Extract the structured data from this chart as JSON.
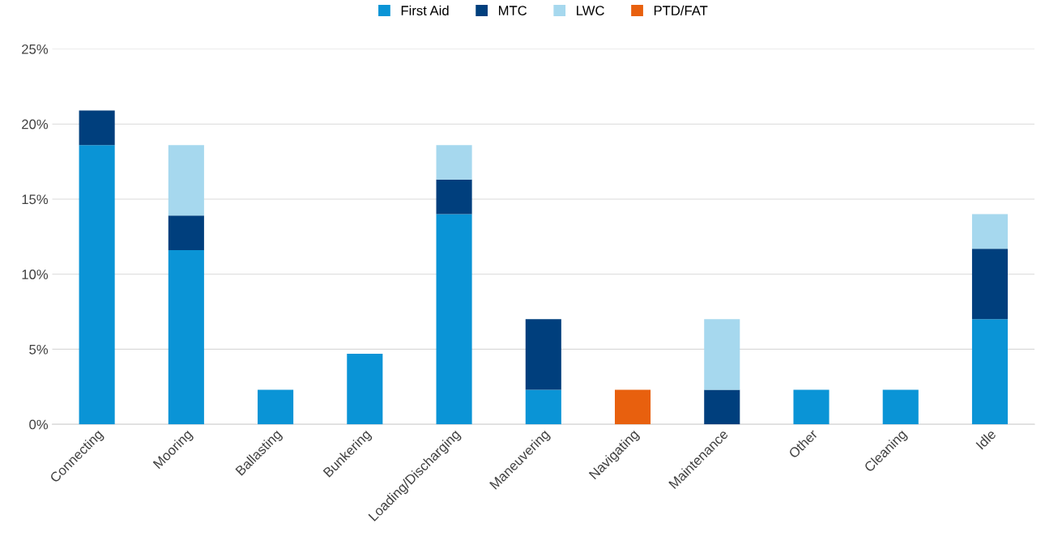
{
  "chart_data": {
    "type": "bar",
    "stacked": true,
    "categories": [
      "Connecting",
      "Mooring",
      "Ballasting",
      "Bunkering",
      "Loading/Discharging",
      "Maneuvering",
      "Navigating",
      "Maintenance",
      "Other",
      "Cleaning",
      "Idle"
    ],
    "series": [
      {
        "name": "First Aid",
        "color": "#0a94d6",
        "values": [
          18.6,
          11.6,
          2.3,
          4.7,
          14.0,
          2.3,
          null,
          null,
          2.3,
          2.3,
          7.0
        ]
      },
      {
        "name": "MTC",
        "color": "#003f7d",
        "values": [
          2.3,
          2.3,
          null,
          null,
          2.3,
          4.7,
          null,
          2.3,
          null,
          null,
          4.7
        ]
      },
      {
        "name": "LWC",
        "color": "#a6d8ee",
        "values": [
          null,
          4.7,
          null,
          null,
          2.3,
          null,
          null,
          4.7,
          null,
          null,
          2.3
        ]
      },
      {
        "name": "PTD/FAT",
        "color": "#e8600e",
        "values": [
          null,
          null,
          null,
          null,
          null,
          null,
          2.3,
          null,
          null,
          null,
          null
        ]
      }
    ],
    "ylim": [
      0,
      25
    ],
    "yticks": [
      {
        "value": 0,
        "label": "0%"
      },
      {
        "value": 5,
        "label": "5%"
      },
      {
        "value": 10,
        "label": "10%"
      },
      {
        "value": 15,
        "label": "15%"
      },
      {
        "value": 20,
        "label": "20%"
      },
      {
        "value": 25,
        "label": "25%"
      }
    ],
    "grid": "y",
    "legend": "top"
  }
}
